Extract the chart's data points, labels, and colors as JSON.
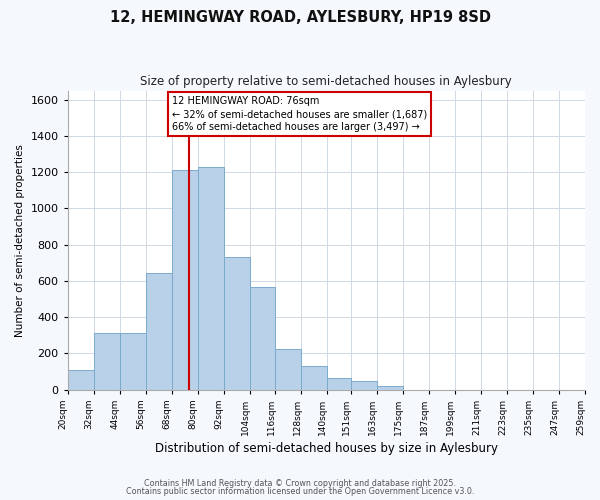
{
  "title": "12, HEMINGWAY ROAD, AYLESBURY, HP19 8SD",
  "subtitle": "Size of property relative to semi-detached houses in Aylesbury",
  "xlabel": "Distribution of semi-detached houses by size in Aylesbury",
  "ylabel": "Number of semi-detached properties",
  "bin_labels": [
    "20sqm",
    "32sqm",
    "44sqm",
    "56sqm",
    "68sqm",
    "80sqm",
    "92sqm",
    "104sqm",
    "116sqm",
    "128sqm",
    "140sqm",
    "151sqm",
    "163sqm",
    "175sqm",
    "187sqm",
    "199sqm",
    "211sqm",
    "223sqm",
    "235sqm",
    "247sqm",
    "259sqm"
  ],
  "bin_edges": [
    20,
    32,
    44,
    56,
    68,
    80,
    92,
    104,
    116,
    128,
    140,
    151,
    163,
    175,
    187,
    199,
    211,
    223,
    235,
    247,
    259
  ],
  "counts": [
    110,
    310,
    310,
    645,
    1210,
    1230,
    730,
    565,
    225,
    130,
    65,
    45,
    20,
    0,
    0,
    0,
    0,
    0,
    0,
    0
  ],
  "bar_color": "#b8d0e8",
  "bar_edge_color": "#7aabcc",
  "vline_x": 76,
  "vline_color": "#cc0000",
  "annotation_text": "12 HEMINGWAY ROAD: 76sqm\n← 32% of semi-detached houses are smaller (1,687)\n66% of semi-detached houses are larger (3,497) →",
  "annotation_box_color": "#ffffff",
  "annotation_box_edge": "#cc0000",
  "plot_bg_color": "#ffffff",
  "fig_bg_color": "#f5f8fc",
  "ylim": [
    0,
    1650
  ],
  "yticks": [
    0,
    200,
    400,
    600,
    800,
    1000,
    1200,
    1400,
    1600
  ],
  "footer1": "Contains HM Land Registry data © Crown copyright and database right 2025.",
  "footer2": "Contains public sector information licensed under the Open Government Licence v3.0."
}
